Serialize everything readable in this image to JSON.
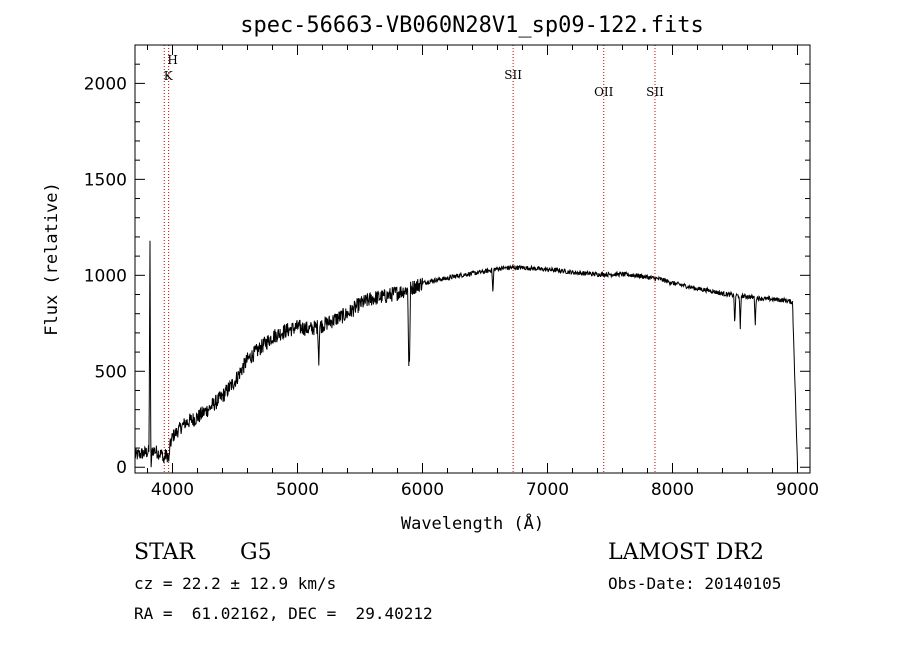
{
  "chart_data": {
    "type": "line",
    "title": "spec-56663-VB060N28V1_sp09-122.fits",
    "xlabel": "Wavelength (Å)",
    "ylabel": "Flux (relative)",
    "xlim": [
      3700,
      9100
    ],
    "ylim": [
      -30,
      2200
    ],
    "x_ticks": [
      "4000",
      "5000",
      "6000",
      "7000",
      "8000",
      "9000"
    ],
    "y_ticks": [
      "0",
      "500",
      "1000",
      "1500",
      "2000"
    ],
    "grid": false,
    "series": [
      {
        "continuum": [
          [
            3700,
            60
          ],
          [
            3800,
            80
          ],
          [
            3850,
            90
          ],
          [
            3900,
            70
          ],
          [
            3960,
            60
          ],
          [
            4000,
            160
          ],
          [
            4100,
            230
          ],
          [
            4200,
            260
          ],
          [
            4300,
            310
          ],
          [
            4400,
            370
          ],
          [
            4500,
            450
          ],
          [
            4600,
            560
          ],
          [
            4700,
            620
          ],
          [
            4800,
            680
          ],
          [
            4900,
            710
          ],
          [
            5000,
            730
          ],
          [
            5100,
            720
          ],
          [
            5200,
            740
          ],
          [
            5300,
            770
          ],
          [
            5400,
            800
          ],
          [
            5500,
            850
          ],
          [
            5600,
            880
          ],
          [
            5700,
            890
          ],
          [
            5800,
            910
          ],
          [
            5900,
            930
          ],
          [
            6000,
            960
          ],
          [
            6100,
            975
          ],
          [
            6200,
            985
          ],
          [
            6300,
            1000
          ],
          [
            6400,
            1010
          ],
          [
            6500,
            1020
          ],
          [
            6600,
            1035
          ],
          [
            6700,
            1040
          ],
          [
            6800,
            1040
          ],
          [
            6900,
            1035
          ],
          [
            7000,
            1030
          ],
          [
            7100,
            1025
          ],
          [
            7200,
            1015
          ],
          [
            7300,
            1010
          ],
          [
            7400,
            1005
          ],
          [
            7500,
            1005
          ],
          [
            7600,
            1005
          ],
          [
            7700,
            1000
          ],
          [
            7800,
            990
          ],
          [
            7900,
            980
          ],
          [
            8000,
            960
          ],
          [
            8100,
            945
          ],
          [
            8200,
            930
          ],
          [
            8300,
            920
          ],
          [
            8400,
            905
          ],
          [
            8500,
            895
          ],
          [
            8600,
            890
          ],
          [
            8700,
            880
          ],
          [
            8800,
            875
          ],
          [
            8900,
            870
          ],
          [
            8960,
            860
          ],
          [
            9000,
            0
          ]
        ],
        "absorption_lines": [
          [
            3820,
            1180
          ],
          [
            3829,
            0
          ],
          [
            3930,
            20
          ],
          [
            3970,
            30
          ],
          [
            5170,
            530
          ],
          [
            5890,
            520
          ],
          [
            5896,
            550
          ],
          [
            6563,
            900
          ],
          [
            8498,
            740
          ],
          [
            8542,
            720
          ],
          [
            8662,
            740
          ]
        ]
      }
    ],
    "reference_lines": [
      {
        "x": 3934,
        "labels": [
          "K"
        ]
      },
      {
        "x": 3969,
        "labels": [
          "H"
        ]
      },
      {
        "x": 6725,
        "labels": [
          "SII"
        ]
      },
      {
        "x": 7450,
        "labels": [
          "OII"
        ]
      },
      {
        "x": 7860,
        "labels": [
          "SII"
        ]
      }
    ],
    "line_color": "#000000",
    "reference_line_color": "#cc0000"
  },
  "info": {
    "object_class": "STAR",
    "subclass": "G5",
    "survey": "LAMOST DR2",
    "redshift": "cz = 22.2 ± 12.9 km/s",
    "obs_date": "Obs-Date: 20140105",
    "coords": "RA =  61.02162, DEC =  29.40212"
  }
}
